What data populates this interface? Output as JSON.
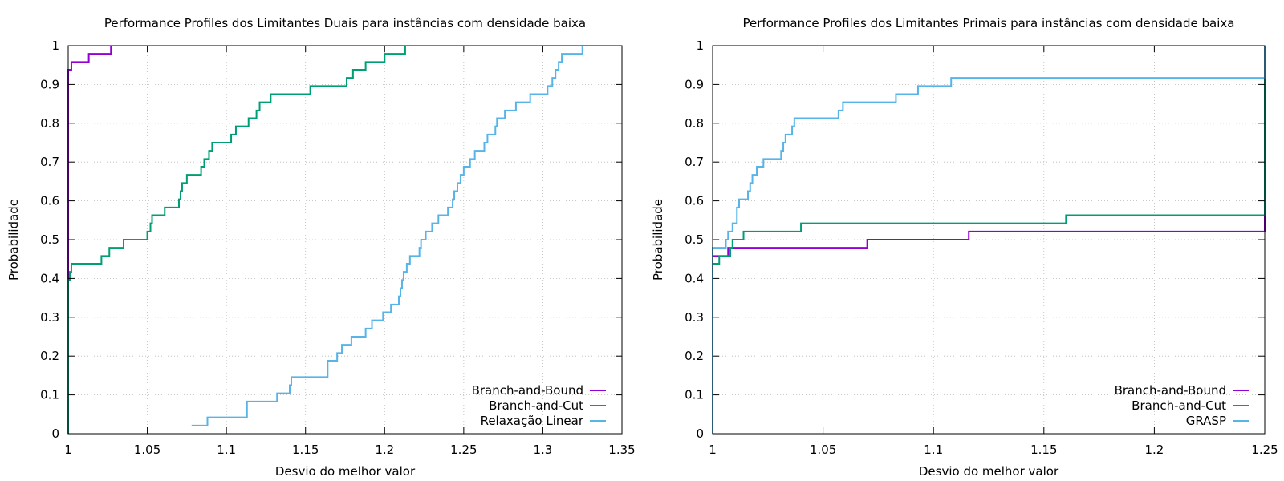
{
  "chart_data": [
    {
      "type": "line",
      "title": "Performance Profiles dos Limitantes Duais para instâncias com densidade baixa",
      "xlabel": "Desvio do melhor valor",
      "ylabel": "Probabilidade",
      "xlim": [
        1,
        1.35
      ],
      "ylim": [
        0,
        1
      ],
      "xticks": [
        "1",
        "1.05",
        "1.1",
        "1.15",
        "1.2",
        "1.25",
        "1.3",
        "1.35"
      ],
      "yticks": [
        "0",
        "0.1",
        "0.2",
        "0.3",
        "0.4",
        "0.5",
        "0.6",
        "0.7",
        "0.8",
        "0.9",
        "1"
      ],
      "grid": true,
      "legend_position": "bottom-right",
      "series": [
        {
          "name": "Branch-and-Bound",
          "color": "#9400d3",
          "points": [
            [
              1.0,
              0.0
            ],
            [
              1.0,
              0.938
            ],
            [
              1.002,
              0.938
            ],
            [
              1.002,
              0.958
            ],
            [
              1.013,
              0.958
            ],
            [
              1.013,
              0.979
            ],
            [
              1.027,
              0.979
            ],
            [
              1.027,
              1.0
            ]
          ]
        },
        {
          "name": "Branch-and-Cut",
          "color": "#009e73",
          "points": [
            [
              1.0,
              0.0
            ],
            [
              1.0,
              0.396
            ],
            [
              1.001,
              0.396
            ],
            [
              1.001,
              0.417
            ],
            [
              1.002,
              0.417
            ],
            [
              1.002,
              0.438
            ],
            [
              1.021,
              0.438
            ],
            [
              1.021,
              0.458
            ],
            [
              1.026,
              0.458
            ],
            [
              1.026,
              0.479
            ],
            [
              1.035,
              0.479
            ],
            [
              1.035,
              0.5
            ],
            [
              1.05,
              0.5
            ],
            [
              1.05,
              0.521
            ],
            [
              1.052,
              0.521
            ],
            [
              1.052,
              0.542
            ],
            [
              1.053,
              0.542
            ],
            [
              1.053,
              0.563
            ],
            [
              1.061,
              0.563
            ],
            [
              1.061,
              0.583
            ],
            [
              1.07,
              0.583
            ],
            [
              1.07,
              0.604
            ],
            [
              1.071,
              0.604
            ],
            [
              1.071,
              0.625
            ],
            [
              1.072,
              0.625
            ],
            [
              1.072,
              0.646
            ],
            [
              1.075,
              0.646
            ],
            [
              1.075,
              0.667
            ],
            [
              1.084,
              0.667
            ],
            [
              1.084,
              0.688
            ],
            [
              1.086,
              0.688
            ],
            [
              1.086,
              0.708
            ],
            [
              1.089,
              0.708
            ],
            [
              1.089,
              0.729
            ],
            [
              1.091,
              0.729
            ],
            [
              1.091,
              0.75
            ],
            [
              1.103,
              0.75
            ],
            [
              1.103,
              0.771
            ],
            [
              1.106,
              0.771
            ],
            [
              1.106,
              0.792
            ],
            [
              1.114,
              0.792
            ],
            [
              1.114,
              0.813
            ],
            [
              1.119,
              0.813
            ],
            [
              1.119,
              0.833
            ],
            [
              1.121,
              0.833
            ],
            [
              1.121,
              0.854
            ],
            [
              1.128,
              0.854
            ],
            [
              1.128,
              0.875
            ],
            [
              1.153,
              0.875
            ],
            [
              1.153,
              0.896
            ],
            [
              1.176,
              0.896
            ],
            [
              1.176,
              0.917
            ],
            [
              1.18,
              0.917
            ],
            [
              1.18,
              0.938
            ],
            [
              1.188,
              0.938
            ],
            [
              1.188,
              0.958
            ],
            [
              1.2,
              0.958
            ],
            [
              1.2,
              0.979
            ],
            [
              1.213,
              0.979
            ],
            [
              1.213,
              1.0
            ]
          ]
        },
        {
          "name": "Relaxação Linear",
          "color": "#56b4e9",
          "points": [
            [
              1.078,
              0.021
            ],
            [
              1.088,
              0.021
            ],
            [
              1.088,
              0.042
            ],
            [
              1.113,
              0.042
            ],
            [
              1.113,
              0.083
            ],
            [
              1.132,
              0.083
            ],
            [
              1.132,
              0.104
            ],
            [
              1.14,
              0.104
            ],
            [
              1.14,
              0.125
            ],
            [
              1.141,
              0.125
            ],
            [
              1.141,
              0.146
            ],
            [
              1.164,
              0.146
            ],
            [
              1.164,
              0.188
            ],
            [
              1.17,
              0.188
            ],
            [
              1.17,
              0.208
            ],
            [
              1.173,
              0.208
            ],
            [
              1.173,
              0.229
            ],
            [
              1.179,
              0.229
            ],
            [
              1.179,
              0.25
            ],
            [
              1.188,
              0.25
            ],
            [
              1.188,
              0.271
            ],
            [
              1.192,
              0.271
            ],
            [
              1.192,
              0.292
            ],
            [
              1.199,
              0.292
            ],
            [
              1.199,
              0.313
            ],
            [
              1.204,
              0.313
            ],
            [
              1.204,
              0.333
            ],
            [
              1.209,
              0.333
            ],
            [
              1.209,
              0.354
            ],
            [
              1.21,
              0.354
            ],
            [
              1.21,
              0.375
            ],
            [
              1.211,
              0.375
            ],
            [
              1.211,
              0.396
            ],
            [
              1.212,
              0.396
            ],
            [
              1.212,
              0.417
            ],
            [
              1.214,
              0.417
            ],
            [
              1.214,
              0.438
            ],
            [
              1.216,
              0.438
            ],
            [
              1.216,
              0.458
            ],
            [
              1.222,
              0.458
            ],
            [
              1.222,
              0.479
            ],
            [
              1.223,
              0.479
            ],
            [
              1.223,
              0.5
            ],
            [
              1.226,
              0.5
            ],
            [
              1.226,
              0.521
            ],
            [
              1.23,
              0.521
            ],
            [
              1.23,
              0.542
            ],
            [
              1.234,
              0.542
            ],
            [
              1.234,
              0.563
            ],
            [
              1.24,
              0.563
            ],
            [
              1.24,
              0.583
            ],
            [
              1.243,
              0.583
            ],
            [
              1.243,
              0.604
            ],
            [
              1.244,
              0.604
            ],
            [
              1.244,
              0.625
            ],
            [
              1.246,
              0.625
            ],
            [
              1.246,
              0.646
            ],
            [
              1.248,
              0.646
            ],
            [
              1.248,
              0.667
            ],
            [
              1.25,
              0.667
            ],
            [
              1.25,
              0.688
            ],
            [
              1.254,
              0.688
            ],
            [
              1.254,
              0.708
            ],
            [
              1.257,
              0.708
            ],
            [
              1.257,
              0.729
            ],
            [
              1.263,
              0.729
            ],
            [
              1.263,
              0.75
            ],
            [
              1.265,
              0.75
            ],
            [
              1.265,
              0.771
            ],
            [
              1.27,
              0.771
            ],
            [
              1.27,
              0.792
            ],
            [
              1.271,
              0.792
            ],
            [
              1.271,
              0.813
            ],
            [
              1.276,
              0.813
            ],
            [
              1.276,
              0.833
            ],
            [
              1.283,
              0.833
            ],
            [
              1.283,
              0.854
            ],
            [
              1.292,
              0.854
            ],
            [
              1.292,
              0.875
            ],
            [
              1.303,
              0.875
            ],
            [
              1.303,
              0.896
            ],
            [
              1.306,
              0.896
            ],
            [
              1.306,
              0.917
            ],
            [
              1.308,
              0.917
            ],
            [
              1.308,
              0.938
            ],
            [
              1.31,
              0.938
            ],
            [
              1.31,
              0.958
            ],
            [
              1.312,
              0.958
            ],
            [
              1.312,
              0.979
            ],
            [
              1.325,
              0.979
            ],
            [
              1.325,
              1.0
            ]
          ]
        }
      ]
    },
    {
      "type": "line",
      "title": "Performance Profiles dos Limitantes Primais para instâncias com densidade baixa",
      "xlabel": "Desvio do melhor valor",
      "ylabel": "Probabilidade",
      "xlim": [
        1,
        1.25
      ],
      "ylim": [
        0,
        1
      ],
      "xticks": [
        "1",
        "1.05",
        "1.1",
        "1.15",
        "1.2",
        "1.25"
      ],
      "yticks": [
        "0",
        "0.1",
        "0.2",
        "0.3",
        "0.4",
        "0.5",
        "0.6",
        "0.7",
        "0.8",
        "0.9",
        "1"
      ],
      "grid": true,
      "legend_position": "bottom-right",
      "series": [
        {
          "name": "Branch-and-Bound",
          "color": "#9400d3",
          "points": [
            [
              1.0,
              0.0
            ],
            [
              1.0,
              0.458
            ],
            [
              1.007,
              0.458
            ],
            [
              1.007,
              0.479
            ],
            [
              1.07,
              0.479
            ],
            [
              1.07,
              0.5
            ],
            [
              1.116,
              0.5
            ],
            [
              1.116,
              0.521
            ],
            [
              1.25,
              0.521
            ],
            [
              1.25,
              1.0
            ]
          ]
        },
        {
          "name": "Branch-and-Cut",
          "color": "#009e73",
          "points": [
            [
              1.0,
              0.0
            ],
            [
              1.0,
              0.438
            ],
            [
              1.003,
              0.438
            ],
            [
              1.003,
              0.458
            ],
            [
              1.008,
              0.458
            ],
            [
              1.008,
              0.479
            ],
            [
              1.009,
              0.479
            ],
            [
              1.009,
              0.5
            ],
            [
              1.014,
              0.5
            ],
            [
              1.014,
              0.521
            ],
            [
              1.04,
              0.521
            ],
            [
              1.04,
              0.542
            ],
            [
              1.16,
              0.542
            ],
            [
              1.16,
              0.563
            ],
            [
              1.25,
              0.563
            ],
            [
              1.25,
              1.0
            ]
          ]
        },
        {
          "name": "GRASP",
          "color": "#56b4e9",
          "points": [
            [
              1.0,
              0.0
            ],
            [
              1.0,
              0.479
            ],
            [
              1.006,
              0.479
            ],
            [
              1.006,
              0.5
            ],
            [
              1.007,
              0.5
            ],
            [
              1.007,
              0.521
            ],
            [
              1.009,
              0.521
            ],
            [
              1.009,
              0.542
            ],
            [
              1.011,
              0.542
            ],
            [
              1.011,
              0.563
            ],
            [
              1.011,
              0.583
            ],
            [
              1.012,
              0.583
            ],
            [
              1.012,
              0.604
            ],
            [
              1.016,
              0.604
            ],
            [
              1.016,
              0.625
            ],
            [
              1.017,
              0.625
            ],
            [
              1.017,
              0.646
            ],
            [
              1.018,
              0.646
            ],
            [
              1.018,
              0.667
            ],
            [
              1.02,
              0.667
            ],
            [
              1.02,
              0.688
            ],
            [
              1.023,
              0.688
            ],
            [
              1.023,
              0.708
            ],
            [
              1.031,
              0.708
            ],
            [
              1.031,
              0.729
            ],
            [
              1.032,
              0.729
            ],
            [
              1.032,
              0.75
            ],
            [
              1.033,
              0.75
            ],
            [
              1.033,
              0.771
            ],
            [
              1.036,
              0.771
            ],
            [
              1.036,
              0.792
            ],
            [
              1.037,
              0.792
            ],
            [
              1.037,
              0.813
            ],
            [
              1.057,
              0.813
            ],
            [
              1.057,
              0.833
            ],
            [
              1.059,
              0.833
            ],
            [
              1.059,
              0.854
            ],
            [
              1.083,
              0.854
            ],
            [
              1.083,
              0.875
            ],
            [
              1.093,
              0.875
            ],
            [
              1.093,
              0.896
            ],
            [
              1.108,
              0.896
            ],
            [
              1.108,
              0.917
            ],
            [
              1.25,
              0.917
            ],
            [
              1.25,
              1.0
            ]
          ]
        }
      ]
    }
  ]
}
